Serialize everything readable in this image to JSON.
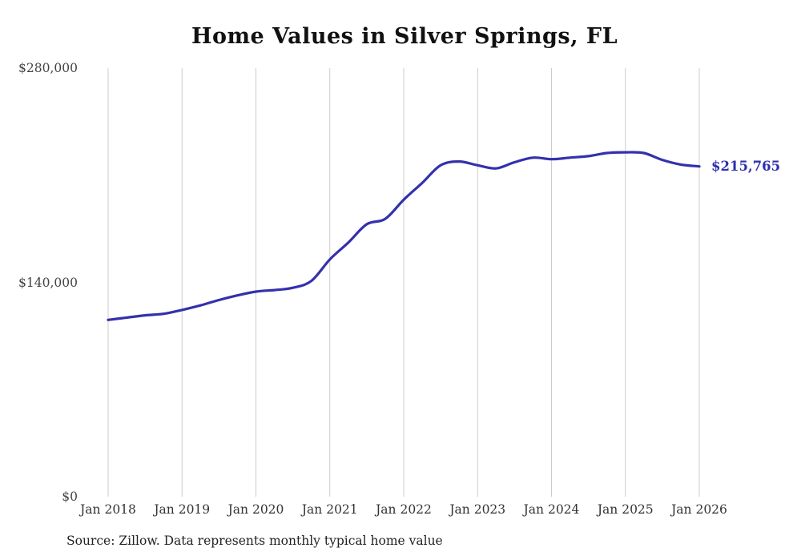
{
  "chart_data": {
    "type": "line",
    "title": "Home Values in Silver Springs, FL",
    "source": "Source: Zillow. Data represents monthly typical home value",
    "end_label": "$215,765",
    "line_color": "#3431ac",
    "grid_color": "#cccccc",
    "axis_text_color": "#444444",
    "tick_text_color": "#333333",
    "legend": "none",
    "grid": "vertical-only",
    "xlabel": "",
    "ylabel": "",
    "xlim": [
      2018,
      2026
    ],
    "ylim": [
      0,
      280000
    ],
    "x_ticks": [
      {
        "pos": 2018,
        "label": "Jan 2018"
      },
      {
        "pos": 2019,
        "label": "Jan 2019"
      },
      {
        "pos": 2020,
        "label": "Jan 2020"
      },
      {
        "pos": 2021,
        "label": "Jan 2021"
      },
      {
        "pos": 2022,
        "label": "Jan 2022"
      },
      {
        "pos": 2023,
        "label": "Jan 2023"
      },
      {
        "pos": 2024,
        "label": "Jan 2024"
      },
      {
        "pos": 2025,
        "label": "Jan 2025"
      },
      {
        "pos": 2026,
        "label": "Jan 2026"
      }
    ],
    "y_ticks": [
      {
        "value": 0,
        "label": "$0"
      },
      {
        "value": 140000,
        "label": "$140,000"
      },
      {
        "value": 280000,
        "label": "$280,000"
      }
    ],
    "series_name": "Typical home value",
    "x": [
      2018.0,
      2018.25,
      2018.5,
      2018.75,
      2019.0,
      2019.25,
      2019.5,
      2019.75,
      2020.0,
      2020.25,
      2020.5,
      2020.75,
      2021.0,
      2021.25,
      2021.5,
      2021.75,
      2022.0,
      2022.25,
      2022.5,
      2022.75,
      2023.0,
      2023.25,
      2023.5,
      2023.75,
      2024.0,
      2024.25,
      2024.5,
      2024.75,
      2025.0,
      2025.25,
      2025.5,
      2025.75,
      2026.0
    ],
    "values": [
      115500,
      117000,
      118500,
      119500,
      122000,
      125000,
      128500,
      131500,
      134000,
      135000,
      136500,
      141000,
      155000,
      166000,
      178000,
      181500,
      194000,
      205000,
      216500,
      219000,
      216500,
      214500,
      218500,
      221500,
      220500,
      221500,
      222500,
      224500,
      225000,
      224500,
      220000,
      217000,
      215765
    ]
  }
}
